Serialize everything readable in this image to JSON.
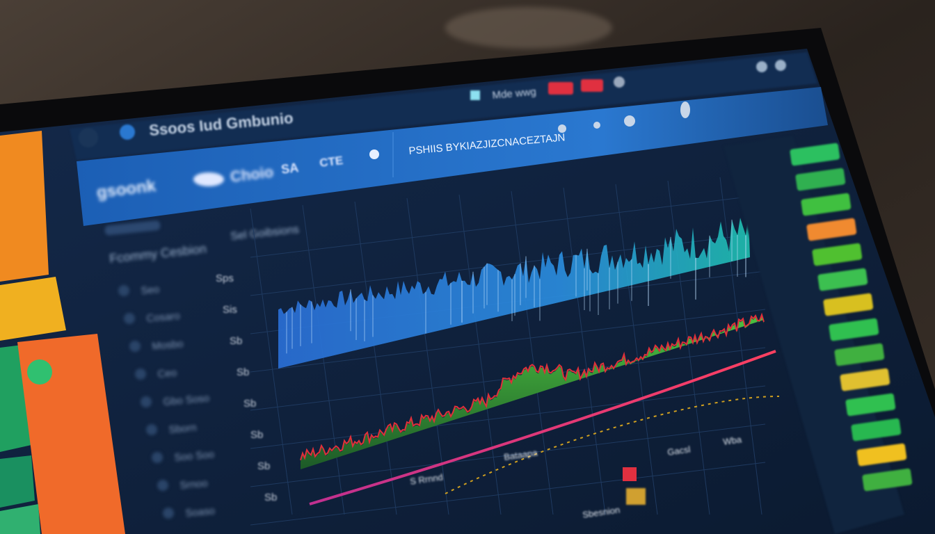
{
  "app": {
    "title": "Ssoos Iud Gmbunio",
    "top_status": "Mde wwg",
    "ticker_banner": "PSHIIS BYKIAZJIZCNACEZTAJN",
    "colors": {
      "background": "#2a2520",
      "screen": "#0f2340",
      "header_band": "#1f63b8",
      "accent_blue": "#2f86e0",
      "accent_teal": "#20b8b0",
      "series_green": "#3fb040",
      "series_red": "#e0303a",
      "series_pink": "#e0408a",
      "panel_orange": "#f07020",
      "panel_yellow": "#f0b020",
      "alert_red": "#e03040"
    }
  },
  "header_band": {
    "brand": "gsoonk",
    "nav": [
      "Choio",
      "SA",
      "CTE"
    ]
  },
  "subheader": {
    "left_label": "Fcommy Cesbion",
    "right_label": "Sel Goibsions"
  },
  "sidebar": {
    "items": [
      "Seo",
      "Cosaro",
      "Mosbo",
      "Ceo",
      "Gbo Soso",
      "Sborn",
      "Soo Soo",
      "Srnoo",
      "Soaso"
    ]
  },
  "chart_labels": {
    "y_labels": [
      "Sps",
      "Sis",
      "Sb",
      "Sb",
      "Sb",
      "Sb",
      "Sb",
      "Sb"
    ],
    "annotations": [
      "S Rrnnd",
      "Bataapa",
      "Sbesnion",
      "Gacsl",
      "Wba"
    ]
  },
  "right_panel": {
    "items": [
      "",
      "",
      "",
      "",
      "",
      "",
      "",
      "",
      "",
      "",
      "",
      ""
    ]
  }
}
